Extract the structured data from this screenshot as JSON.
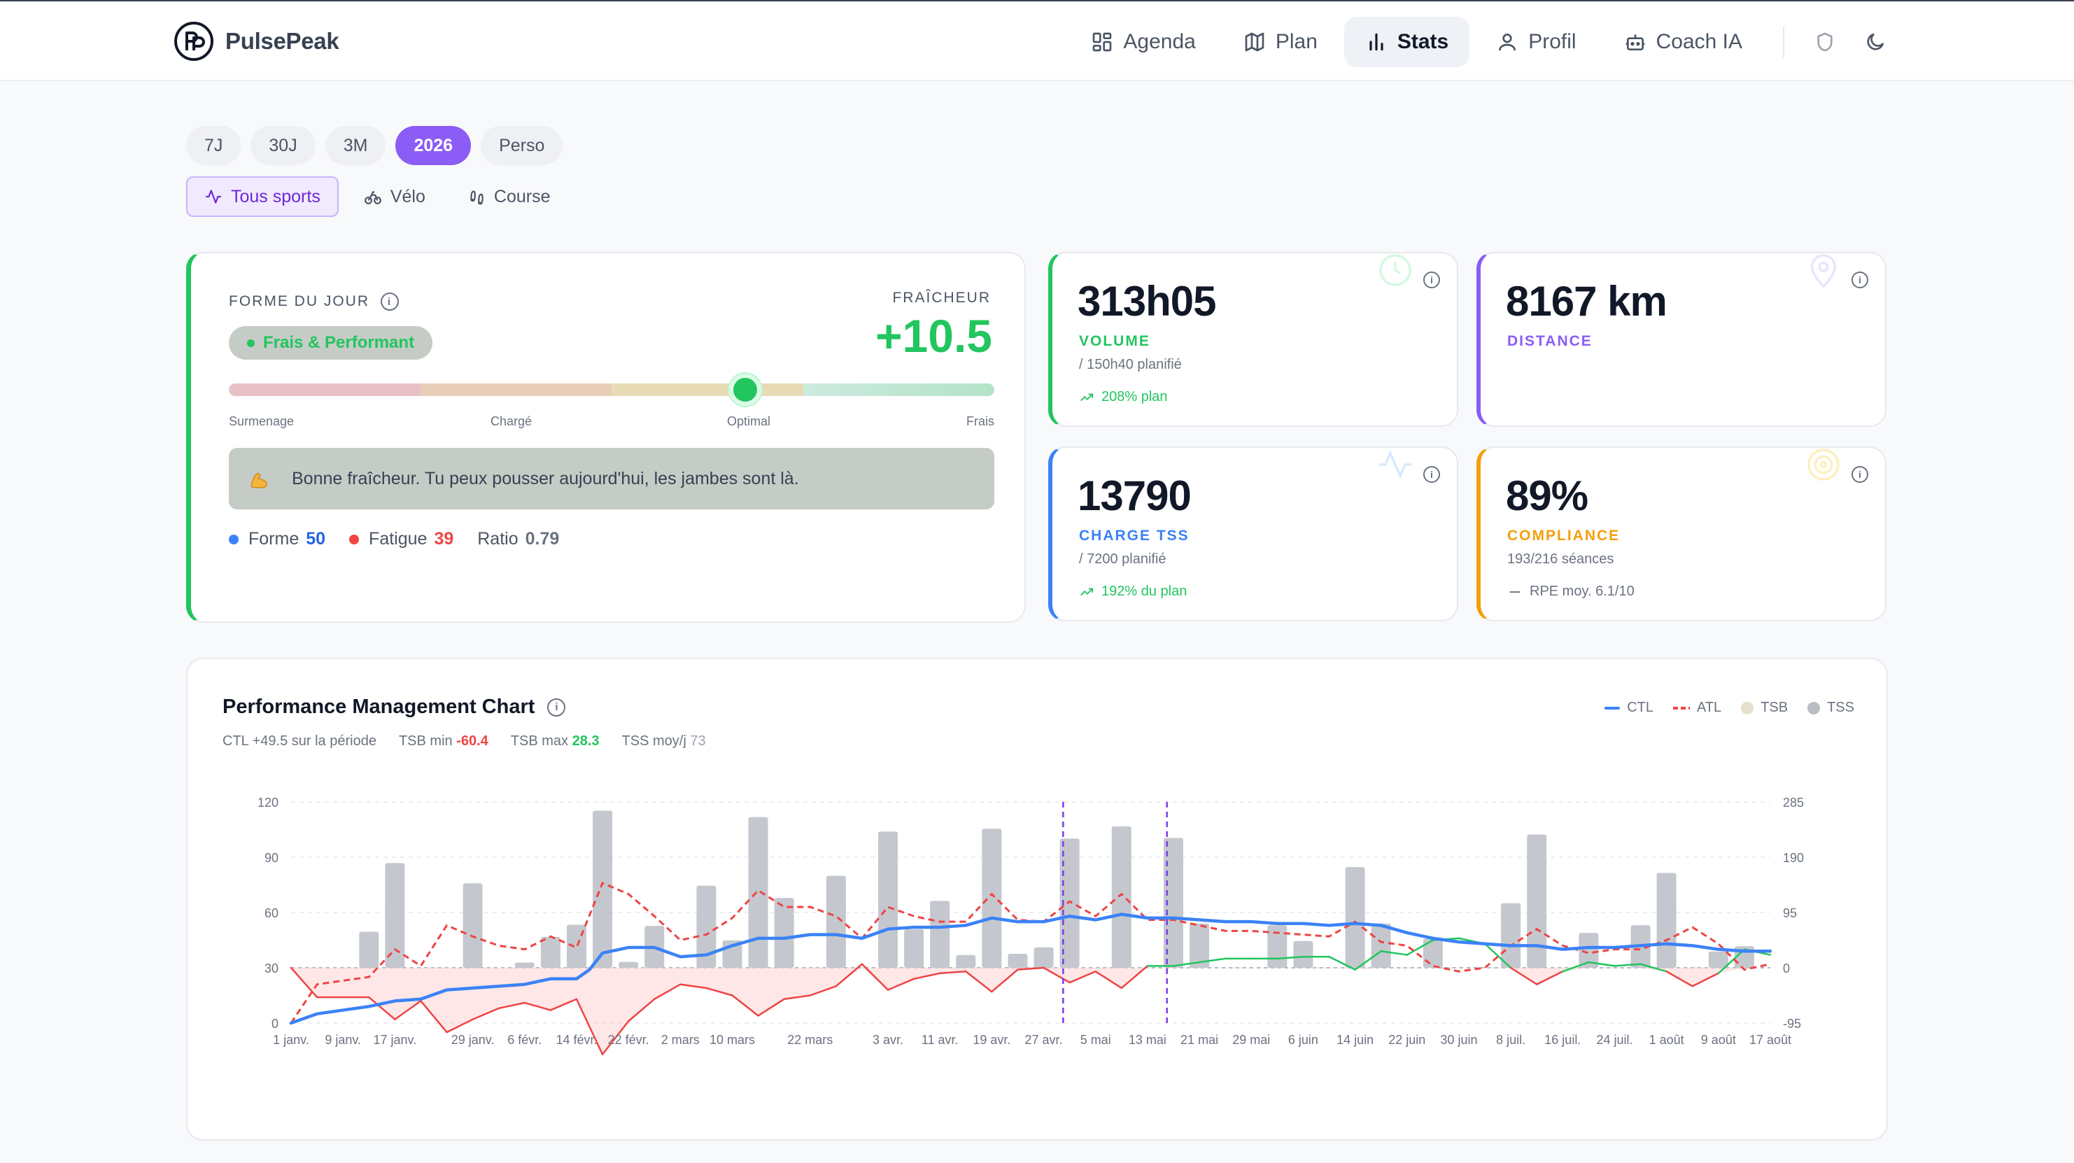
{
  "brand": {
    "name": "PulsePeak",
    "logo": "PP"
  },
  "nav": [
    {
      "label": "Agenda",
      "icon": "grid-icon",
      "active": false
    },
    {
      "label": "Plan",
      "icon": "map-icon",
      "active": false
    },
    {
      "label": "Stats",
      "icon": "bar-chart-icon",
      "active": true
    },
    {
      "label": "Profil",
      "icon": "user-icon",
      "active": false
    },
    {
      "label": "Coach IA",
      "icon": "bot-icon",
      "active": false
    }
  ],
  "periods": [
    "7J",
    "30J",
    "3M",
    "2026",
    "Perso"
  ],
  "active_period": "2026",
  "sports": [
    {
      "label": "Tous sports",
      "icon": "activity-icon",
      "active": true
    },
    {
      "label": "Vélo",
      "icon": "bike-icon",
      "active": false
    },
    {
      "label": "Course",
      "icon": "footprints-icon",
      "active": false
    }
  ],
  "forme": {
    "label": "FORME DU JOUR",
    "badge": "Frais & Performant",
    "freshness_label": "FRAÎCHEUR",
    "freshness_value": "+10.5",
    "gauge_level": 0.675,
    "gauge_labels": [
      "Surmenage",
      "Chargé",
      "Optimal",
      "Frais"
    ],
    "advice": "Bonne fraîcheur. Tu peux pousser aujourd'hui, les jambes sont là.",
    "forme_label": "Forme",
    "forme_value": "50",
    "fatigue_label": "Fatigue",
    "fatigue_value": "39",
    "ratio_label": "Ratio",
    "ratio_value": "0.79"
  },
  "kpis": {
    "volume": {
      "value": "313h05",
      "label": "VOLUME",
      "sub": "/ 150h40 planifié",
      "trend": "208% plan",
      "color": "#22c55e"
    },
    "distance": {
      "value": "8167 km",
      "label": "DISTANCE",
      "color": "#8b5cf6"
    },
    "tss": {
      "value": "13790",
      "label": "CHARGE TSS",
      "sub": "/ 7200 planifié",
      "trend": "192% du plan",
      "color": "#3b82f6"
    },
    "compliance": {
      "value": "89%",
      "label": "COMPLIANCE",
      "sub": "193/216 séances",
      "trend": "RPE moy. 6.1/10",
      "color": "#f59e0b"
    }
  },
  "pmc": {
    "title": "Performance Management Chart",
    "stat_ctl": "CTL +49.5 sur la période",
    "stat_tsb_min_label": "TSB min",
    "stat_tsb_min": "-60.4",
    "stat_tsb_max_label": "TSB max",
    "stat_tsb_max": "28.3",
    "stat_tss_label": "TSS moy/j",
    "stat_tss": "73",
    "legend": {
      "ctl": "CTL",
      "atl": "ATL",
      "tsb": "TSB",
      "tss": "TSS"
    }
  },
  "chart_data": {
    "type": "line",
    "x_labels": [
      "1 janv.",
      "9 janv.",
      "17 janv.",
      "29 janv.",
      "6 févr.",
      "14 févr.",
      "22 févr.",
      "2 mars",
      "10 mars",
      "22 mars",
      "3 avr.",
      "11 avr.",
      "19 avr.",
      "27 avr.",
      "5 mai",
      "13 mai",
      "21 mai",
      "29 mai",
      "6 juin",
      "14 juin",
      "22 juin",
      "30 juin",
      "8 juil.",
      "16 juil.",
      "24 juil.",
      "1 août",
      "9 août",
      "17 août"
    ],
    "x_label_days": [
      0,
      8,
      16,
      28,
      36,
      44,
      52,
      60,
      68,
      80,
      92,
      100,
      108,
      116,
      124,
      132,
      140,
      148,
      156,
      164,
      172,
      180,
      188,
      196,
      204,
      212,
      220,
      228
    ],
    "y_left_ticks": [
      0,
      30,
      60,
      90,
      120
    ],
    "y_right_ticks": [
      -95,
      0,
      95,
      190,
      285
    ],
    "y_left_range": [
      0,
      120
    ],
    "y_right_range": [
      -95,
      285
    ],
    "markers_day": [
      119,
      135
    ],
    "colors": {
      "ctl": "#3b82f6",
      "atl": "#ef4444",
      "tsb_pos": "#22c55e",
      "tsb_neg": "#ef4444",
      "tss": "#c4c8ce"
    },
    "tss_bars": [
      {
        "day": 12,
        "value": 62
      },
      {
        "day": 16,
        "value": 180
      },
      {
        "day": 28,
        "value": 145
      },
      {
        "day": 36,
        "value": 9
      },
      {
        "day": 40,
        "value": 53
      },
      {
        "day": 44,
        "value": 74
      },
      {
        "day": 48,
        "value": 270
      },
      {
        "day": 52,
        "value": 10
      },
      {
        "day": 56,
        "value": 72
      },
      {
        "day": 64,
        "value": 141
      },
      {
        "day": 68,
        "value": 47
      },
      {
        "day": 72,
        "value": 259
      },
      {
        "day": 76,
        "value": 120
      },
      {
        "day": 84,
        "value": 158
      },
      {
        "day": 92,
        "value": 234
      },
      {
        "day": 96,
        "value": 66
      },
      {
        "day": 100,
        "value": 115
      },
      {
        "day": 104,
        "value": 22
      },
      {
        "day": 108,
        "value": 239
      },
      {
        "day": 112,
        "value": 24
      },
      {
        "day": 116,
        "value": 35
      },
      {
        "day": 120,
        "value": 222
      },
      {
        "day": 128,
        "value": 243
      },
      {
        "day": 136,
        "value": 223
      },
      {
        "day": 140,
        "value": 76
      },
      {
        "day": 152,
        "value": 73
      },
      {
        "day": 156,
        "value": 46
      },
      {
        "day": 164,
        "value": 173
      },
      {
        "day": 168,
        "value": 76
      },
      {
        "day": 176,
        "value": 50
      },
      {
        "day": 188,
        "value": 111
      },
      {
        "day": 192,
        "value": 229
      },
      {
        "day": 200,
        "value": 60
      },
      {
        "day": 208,
        "value": 73
      },
      {
        "day": 212,
        "value": 163
      },
      {
        "day": 220,
        "value": 28
      },
      {
        "day": 224,
        "value": 37
      }
    ],
    "ctl": [
      [
        0,
        0
      ],
      [
        4,
        5
      ],
      [
        8,
        7
      ],
      [
        12,
        9
      ],
      [
        16,
        12
      ],
      [
        20,
        13
      ],
      [
        24,
        18
      ],
      [
        28,
        19
      ],
      [
        32,
        20
      ],
      [
        36,
        21
      ],
      [
        40,
        24
      ],
      [
        44,
        24
      ],
      [
        46,
        29
      ],
      [
        48,
        38
      ],
      [
        52,
        41
      ],
      [
        56,
        41
      ],
      [
        60,
        36
      ],
      [
        64,
        37
      ],
      [
        68,
        42
      ],
      [
        72,
        46
      ],
      [
        76,
        46
      ],
      [
        80,
        48
      ],
      [
        84,
        48
      ],
      [
        88,
        46
      ],
      [
        92,
        51
      ],
      [
        96,
        52
      ],
      [
        100,
        52
      ],
      [
        104,
        53
      ],
      [
        108,
        57
      ],
      [
        112,
        55
      ],
      [
        116,
        55
      ],
      [
        120,
        58
      ],
      [
        124,
        56
      ],
      [
        128,
        59
      ],
      [
        132,
        57
      ],
      [
        136,
        57
      ],
      [
        140,
        56
      ],
      [
        144,
        55
      ],
      [
        148,
        55
      ],
      [
        152,
        54
      ],
      [
        156,
        54
      ],
      [
        160,
        53
      ],
      [
        164,
        54
      ],
      [
        168,
        53
      ],
      [
        172,
        49
      ],
      [
        176,
        46
      ],
      [
        180,
        44
      ],
      [
        184,
        43
      ],
      [
        188,
        42
      ],
      [
        192,
        42
      ],
      [
        196,
        40
      ],
      [
        200,
        41
      ],
      [
        204,
        41
      ],
      [
        208,
        42
      ],
      [
        212,
        43
      ],
      [
        216,
        42
      ],
      [
        220,
        40
      ],
      [
        224,
        39
      ],
      [
        228,
        39
      ]
    ],
    "atl": [
      [
        0,
        0
      ],
      [
        4,
        21
      ],
      [
        8,
        23
      ],
      [
        12,
        25
      ],
      [
        16,
        40
      ],
      [
        20,
        31
      ],
      [
        24,
        53
      ],
      [
        28,
        47
      ],
      [
        32,
        42
      ],
      [
        36,
        40
      ],
      [
        40,
        47
      ],
      [
        44,
        41
      ],
      [
        48,
        76
      ],
      [
        52,
        70
      ],
      [
        56,
        58
      ],
      [
        60,
        45
      ],
      [
        64,
        48
      ],
      [
        68,
        57
      ],
      [
        72,
        72
      ],
      [
        76,
        63
      ],
      [
        80,
        63
      ],
      [
        84,
        58
      ],
      [
        88,
        46
      ],
      [
        92,
        63
      ],
      [
        96,
        58
      ],
      [
        100,
        55
      ],
      [
        104,
        55
      ],
      [
        108,
        70
      ],
      [
        112,
        56
      ],
      [
        116,
        55
      ],
      [
        120,
        66
      ],
      [
        124,
        58
      ],
      [
        128,
        70
      ],
      [
        132,
        56
      ],
      [
        136,
        56
      ],
      [
        140,
        53
      ],
      [
        144,
        50
      ],
      [
        148,
        50
      ],
      [
        152,
        49
      ],
      [
        156,
        48
      ],
      [
        160,
        47
      ],
      [
        164,
        55
      ],
      [
        168,
        44
      ],
      [
        172,
        42
      ],
      [
        176,
        31
      ],
      [
        180,
        28
      ],
      [
        184,
        30
      ],
      [
        188,
        42
      ],
      [
        192,
        51
      ],
      [
        196,
        42
      ],
      [
        200,
        38
      ],
      [
        204,
        40
      ],
      [
        208,
        40
      ],
      [
        212,
        45
      ],
      [
        216,
        52
      ],
      [
        220,
        43
      ],
      [
        224,
        29
      ],
      [
        228,
        32
      ]
    ],
    "tsb": [
      [
        0,
        0
      ],
      [
        4,
        -16
      ],
      [
        8,
        -16
      ],
      [
        12,
        -16
      ],
      [
        16,
        -28
      ],
      [
        20,
        -18
      ],
      [
        24,
        -35
      ],
      [
        28,
        -28
      ],
      [
        32,
        -22
      ],
      [
        36,
        -19
      ],
      [
        40,
        -23
      ],
      [
        44,
        -17
      ],
      [
        48,
        -47
      ],
      [
        52,
        -29
      ],
      [
        56,
        -17
      ],
      [
        60,
        -9
      ],
      [
        64,
        -11
      ],
      [
        68,
        -15
      ],
      [
        72,
        -26
      ],
      [
        76,
        -17
      ],
      [
        80,
        -15
      ],
      [
        84,
        -10
      ],
      [
        88,
        2
      ],
      [
        92,
        -12
      ],
      [
        96,
        -6
      ],
      [
        100,
        -3
      ],
      [
        104,
        -2
      ],
      [
        108,
        -13
      ],
      [
        112,
        -1
      ],
      [
        116,
        0
      ],
      [
        120,
        -8
      ],
      [
        124,
        -2
      ],
      [
        128,
        -11
      ],
      [
        132,
        1
      ],
      [
        136,
        1
      ],
      [
        140,
        3
      ],
      [
        144,
        5
      ],
      [
        148,
        5
      ],
      [
        152,
        5
      ],
      [
        156,
        6
      ],
      [
        160,
        6
      ],
      [
        164,
        -1
      ],
      [
        168,
        9
      ],
      [
        172,
        7
      ],
      [
        176,
        15
      ],
      [
        180,
        16
      ],
      [
        184,
        13
      ],
      [
        188,
        0
      ],
      [
        192,
        -9
      ],
      [
        196,
        -2
      ],
      [
        200,
        3
      ],
      [
        204,
        1
      ],
      [
        208,
        2
      ],
      [
        212,
        -2
      ],
      [
        216,
        -10
      ],
      [
        220,
        -3
      ],
      [
        224,
        10
      ],
      [
        228,
        7
      ]
    ],
    "day_range": [
      0,
      228
    ]
  }
}
